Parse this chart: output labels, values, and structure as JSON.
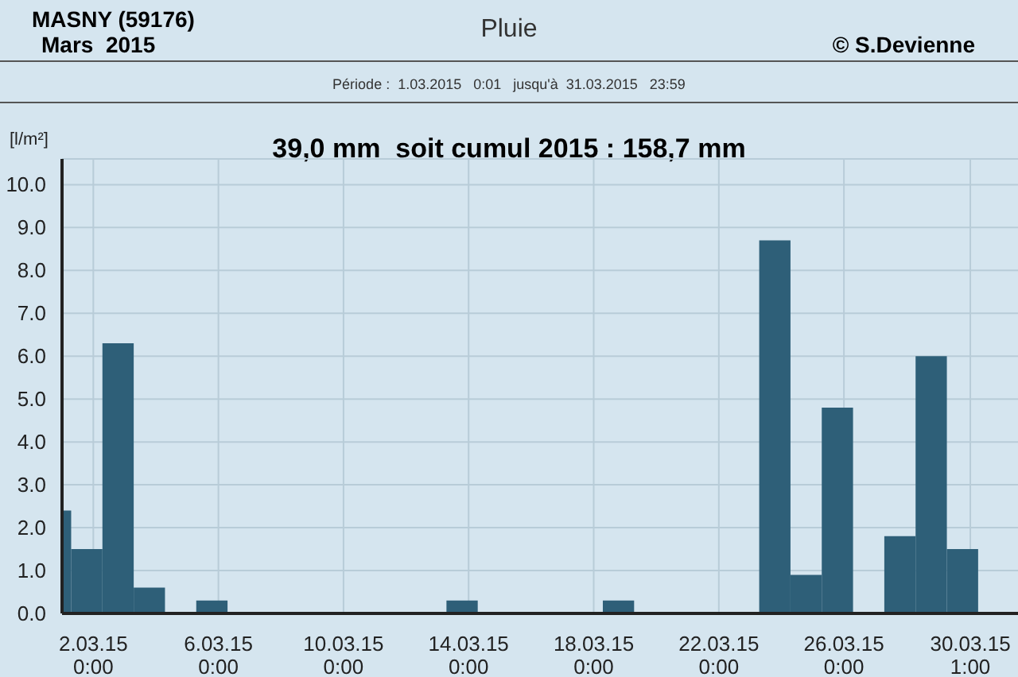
{
  "chart_data": {
    "type": "bar",
    "title": "Pluie",
    "subtitle": "Période :  1.03.2015   0:01   jusqu'à  31.03.2015   23:59",
    "annotations": [
      "MASNY (59176)",
      "Mars  2015",
      "© S.Devienne",
      "39,0 mm  soit cumul 2015 : 158,7 mm"
    ],
    "ylabel": "[l/m²]",
    "x": [
      "2015-03-01T03:00",
      "2015-03-01T19:00",
      "2015-03-02T19:00",
      "2015-03-03T19:00",
      "2015-03-04T19:00",
      "2015-03-05T19:00",
      "2015-03-06T19:00",
      "2015-03-07T19:00",
      "2015-03-08T19:00",
      "2015-03-09T19:00",
      "2015-03-10T19:00",
      "2015-03-11T19:00",
      "2015-03-12T19:00",
      "2015-03-13T19:00",
      "2015-03-14T19:00",
      "2015-03-15T19:00",
      "2015-03-16T19:00",
      "2015-03-17T19:00",
      "2015-03-18T19:00",
      "2015-03-19T19:00",
      "2015-03-20T19:00",
      "2015-03-21T19:00",
      "2015-03-22T19:00",
      "2015-03-23T19:00",
      "2015-03-24T19:00",
      "2015-03-25T19:00",
      "2015-03-26T19:00",
      "2015-03-27T19:00",
      "2015-03-28T19:00",
      "2015-03-29T19:00",
      "2015-03-30T19:00"
    ],
    "values": [
      2.4,
      1.5,
      6.3,
      0.6,
      0,
      0.3,
      0,
      0,
      0,
      0,
      0,
      0,
      0,
      0.3,
      0,
      0,
      0,
      0,
      0.3,
      0,
      0,
      0,
      0,
      8.7,
      0.9,
      4.8,
      0,
      1.8,
      6.0,
      1.5,
      0
    ],
    "color": "#2e5f78",
    "xlim": [
      "2015-03-01T00:00",
      "2015-04-01T14:00"
    ],
    "xticks": [
      {
        "value": "2015-03-02T00:00",
        "label": "2.03.15\n0:00"
      },
      {
        "value": "2015-03-06T00:00",
        "label": "6.03.15\n0:00"
      },
      {
        "value": "2015-03-10T00:00",
        "label": "10.03.15\n0:00"
      },
      {
        "value": "2015-03-14T00:00",
        "label": "14.03.15\n0:00"
      },
      {
        "value": "2015-03-18T00:00",
        "label": "18.03.15\n0:00"
      },
      {
        "value": "2015-03-22T00:00",
        "label": "22.03.15\n0:00"
      },
      {
        "value": "2015-03-26T00:00",
        "label": "26.03.15\n0:00"
      },
      {
        "value": "2015-03-30T01:00",
        "label": "30.03.15\n1:00"
      }
    ],
    "ylim": [
      0,
      10.6
    ],
    "yticks": [
      {
        "value": 0,
        "label": "0.0"
      },
      {
        "value": 1,
        "label": "1.0"
      },
      {
        "value": 2,
        "label": "2.0"
      },
      {
        "value": 3,
        "label": "3.0"
      },
      {
        "value": 4,
        "label": "4.0"
      },
      {
        "value": 5,
        "label": "5.0"
      },
      {
        "value": 6,
        "label": "6.0"
      },
      {
        "value": 7,
        "label": "7.0"
      },
      {
        "value": 8,
        "label": "8.0"
      },
      {
        "value": 9,
        "label": "9.0"
      },
      {
        "value": 10,
        "label": "10.0"
      }
    ],
    "grid": true
  }
}
